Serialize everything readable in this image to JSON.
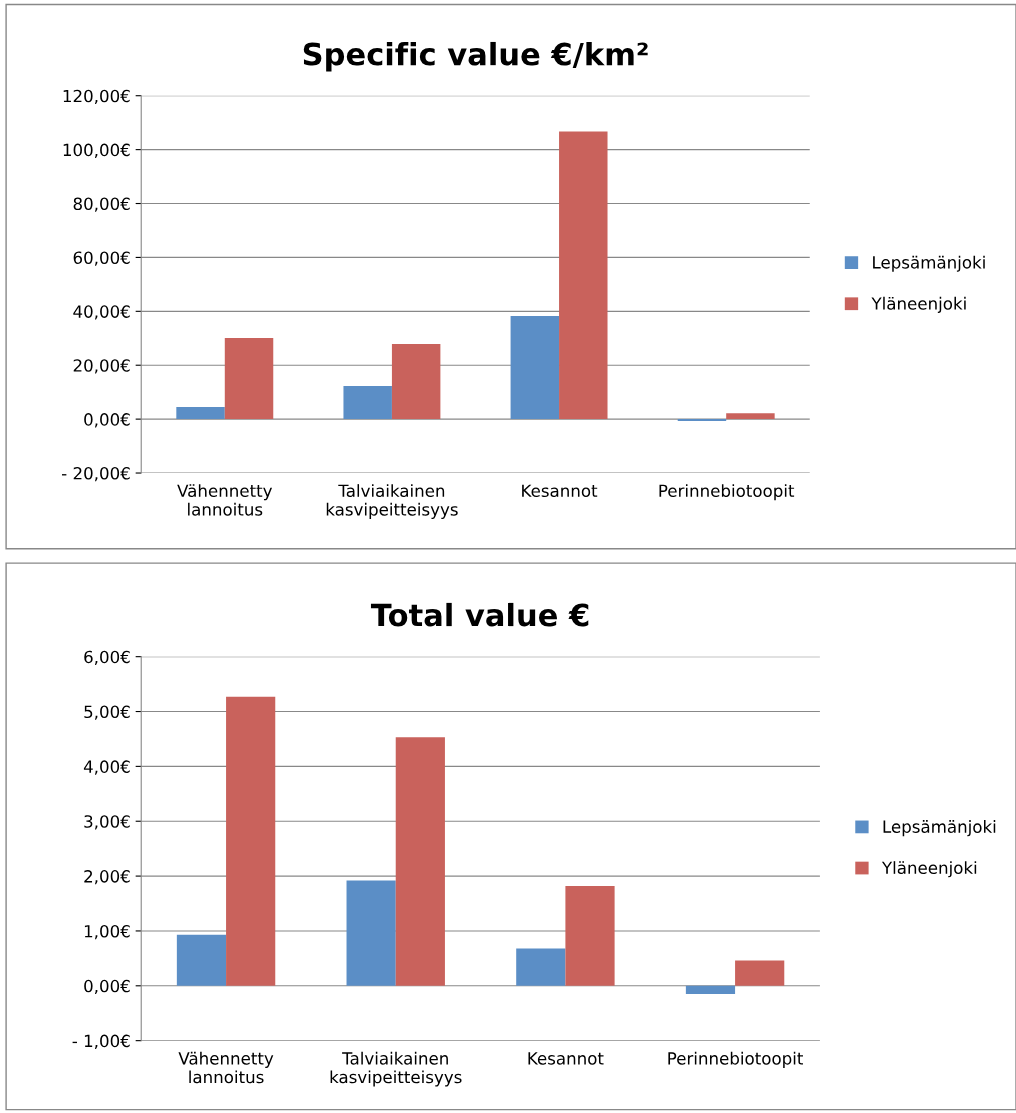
{
  "chart_data": [
    {
      "type": "bar",
      "title": "Specific value €/km²",
      "categories": [
        "Vähennetty\nlannoitus",
        "Talviaikainen\nkasvipeitteisyys",
        "Kesannot",
        "Perinnebiotoopit"
      ],
      "series": [
        {
          "name": "Lepsämänjoki",
          "color": "#5b8ec6",
          "values": [
            4.5,
            12.3,
            38.3,
            -0.7
          ]
        },
        {
          "name": "Yläneenjoki",
          "color": "#c9625c",
          "values": [
            30.1,
            27.9,
            106.7,
            2.2
          ]
        }
      ],
      "ylim": [
        -20,
        120
      ],
      "yticks": [
        {
          "value": -20,
          "label": "- 20,00€"
        },
        {
          "value": 0,
          "label": "0,00€"
        },
        {
          "value": 20,
          "label": "20,00€"
        },
        {
          "value": 40,
          "label": "40,00€"
        },
        {
          "value": 60,
          "label": "60,00€"
        },
        {
          "value": 80,
          "label": "80,00€"
        },
        {
          "value": 100,
          "label": "100,00€"
        },
        {
          "value": 120,
          "label": "120,00€"
        }
      ],
      "grid": "y",
      "legend": "right"
    },
    {
      "type": "bar",
      "title": "Total value €",
      "categories": [
        "Vähennetty\nlannoitus",
        "Talviaikainen\nkasvipeitteisyys",
        "Kesannot",
        "Perinnebiotoopit"
      ],
      "series": [
        {
          "name": "Lepsämänjoki",
          "color": "#5b8ec6",
          "values": [
            0.93,
            1.92,
            0.68,
            -0.15
          ]
        },
        {
          "name": "Yläneenjoki",
          "color": "#c9625c",
          "values": [
            5.27,
            4.53,
            1.82,
            0.46
          ]
        }
      ],
      "ylim": [
        -1,
        6
      ],
      "yticks": [
        {
          "value": -1,
          "label": "- 1,00€"
        },
        {
          "value": 0,
          "label": "0,00€"
        },
        {
          "value": 1,
          "label": "1,00€"
        },
        {
          "value": 2,
          "label": "2,00€"
        },
        {
          "value": 3,
          "label": "3,00€"
        },
        {
          "value": 4,
          "label": "4,00€"
        },
        {
          "value": 5,
          "label": "5,00€"
        },
        {
          "value": 6,
          "label": "6,00€"
        }
      ],
      "grid": "y",
      "legend": "right"
    }
  ]
}
